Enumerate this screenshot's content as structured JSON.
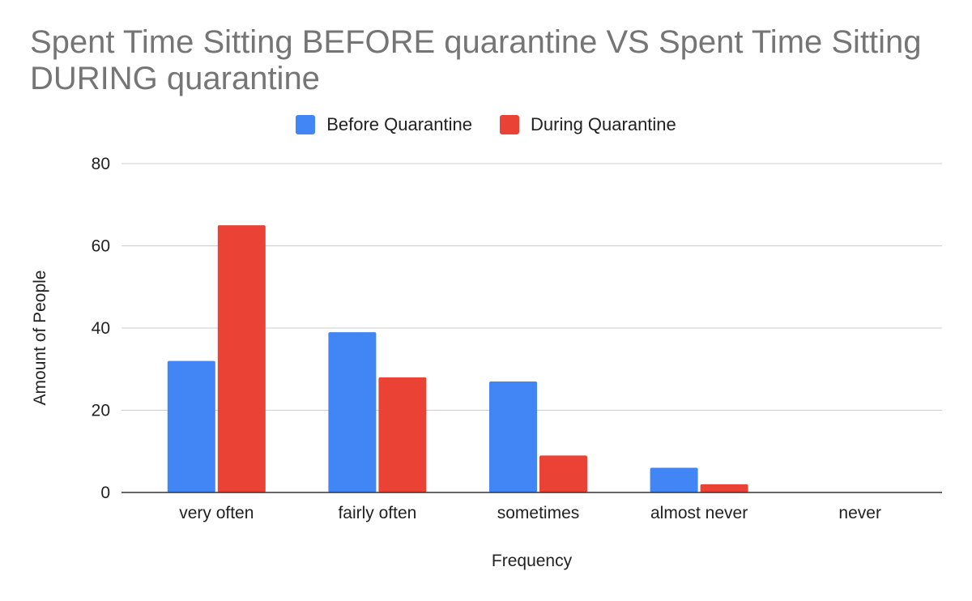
{
  "chart_data": {
    "type": "bar",
    "title": "Spent Time Sitting BEFORE quarantine VS Spent Time Sitting DURING quarantine",
    "xlabel": "Frequency",
    "ylabel": "Amount of People",
    "categories": [
      "very often",
      "fairly often",
      "sometimes",
      "almost never",
      "never"
    ],
    "series": [
      {
        "name": "Before Quarantine",
        "color": "#4285f4",
        "values": [
          32,
          39,
          27,
          6,
          0
        ]
      },
      {
        "name": "During Quarantine",
        "color": "#ea4335",
        "values": [
          65,
          28,
          9,
          2,
          0
        ]
      }
    ],
    "ylim": [
      0,
      80
    ],
    "yticks": [
      0,
      20,
      40,
      60,
      80
    ],
    "grid": true,
    "legend_position": "top"
  }
}
